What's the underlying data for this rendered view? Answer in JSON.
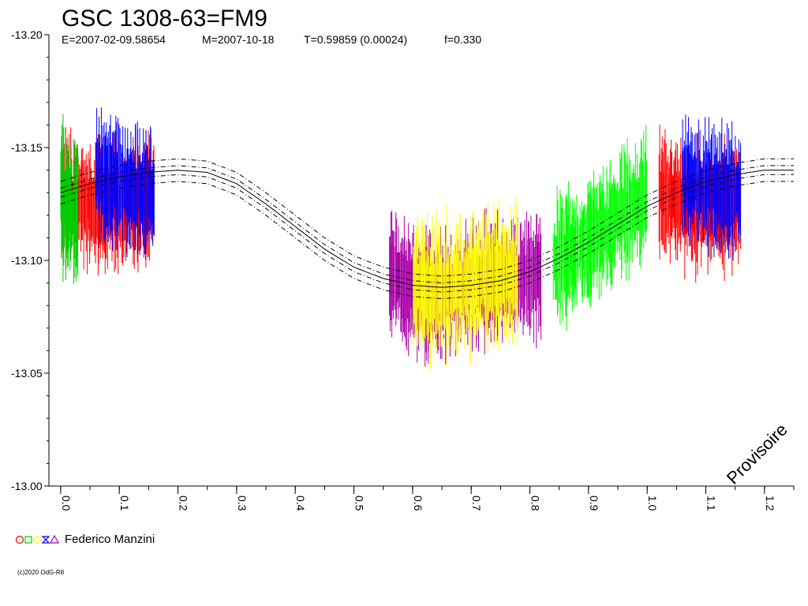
{
  "title": "GSC 1308-63=FM9",
  "subtitle": {
    "epoch": "E=2007-02-09.58654",
    "mid": "M=2007-10-18",
    "period": "T=0.59859 (0.00024)",
    "f": "f=0.330"
  },
  "watermark": "Provisoire",
  "legend": {
    "label": "Federico Manzini",
    "symbols": [
      {
        "name": "circle",
        "color": "#ff0000"
      },
      {
        "name": "square",
        "color": "#00cc00"
      },
      {
        "name": "diamond",
        "color": "#ffff00"
      },
      {
        "name": "hourglass",
        "color": "#0000ff"
      },
      {
        "name": "triangle",
        "color": "#aa00aa"
      }
    ]
  },
  "copyright": "(c)2020 OdG-R8",
  "chart_data": {
    "type": "scatter",
    "title": "GSC 1308-63=FM9",
    "xlabel": "",
    "ylabel": "",
    "xlim": [
      -0.02,
      1.25
    ],
    "ylim": [
      -13.2,
      -13.0
    ],
    "x_ticks": [
      "0.0",
      "0.1",
      "0.2",
      "0.3",
      "0.4",
      "0.5",
      "0.6",
      "0.7",
      "0.8",
      "0.9",
      "1.0",
      "1.1",
      "1.2"
    ],
    "y_ticks": [
      "-13.20",
      "-13.15",
      "-13.10",
      "-13.05",
      "-13.00"
    ],
    "y_inverted": true,
    "grid": false,
    "series": [
      {
        "color": "#ff0000",
        "x": [
          0.0,
          0.02,
          0.04,
          0.06,
          0.08,
          0.1,
          0.12,
          0.14,
          0.16
        ],
        "y": [
          -13.13,
          -13.128,
          -13.126,
          -13.124,
          -13.123,
          -13.124,
          -13.125,
          -13.127,
          -13.129
        ],
        "spread": 0.035
      },
      {
        "color": "#00cc00",
        "x": [
          0.0,
          0.01,
          0.02,
          0.03
        ],
        "y": [
          -13.13,
          -13.125,
          -13.12,
          -13.125
        ],
        "spread": 0.04
      },
      {
        "color": "#0000ff",
        "x": [
          0.06,
          0.08,
          0.1,
          0.12,
          0.14,
          0.16
        ],
        "y": [
          -13.138,
          -13.135,
          -13.133,
          -13.131,
          -13.13,
          -13.129
        ],
        "spread": 0.035
      },
      {
        "color": "#aa00aa",
        "x": [
          0.56,
          0.58,
          0.6,
          0.62,
          0.64,
          0.66,
          0.68,
          0.7,
          0.72,
          0.74,
          0.76,
          0.78,
          0.8,
          0.82
        ],
        "y": [
          -13.095,
          -13.09,
          -13.088,
          -13.085,
          -13.083,
          -13.085,
          -13.088,
          -13.09,
          -13.09,
          -13.09,
          -13.091,
          -13.092,
          -13.093,
          -13.094
        ],
        "spread": 0.035
      },
      {
        "color": "#ffff00",
        "x": [
          0.6,
          0.62,
          0.64,
          0.66,
          0.68,
          0.7,
          0.72,
          0.74,
          0.76,
          0.78
        ],
        "y": [
          -13.09,
          -13.088,
          -13.086,
          -13.087,
          -13.089,
          -13.09,
          -13.092,
          -13.093,
          -13.093,
          -13.092
        ],
        "spread": 0.04
      },
      {
        "color": "#00ff00",
        "x": [
          0.84,
          0.86,
          0.88,
          0.9,
          0.92,
          0.94,
          0.96,
          0.98,
          1.0
        ],
        "y": [
          -13.1,
          -13.102,
          -13.105,
          -13.108,
          -13.112,
          -13.117,
          -13.122,
          -13.125,
          -13.128
        ],
        "spread": 0.035
      },
      {
        "color": "#ff0000",
        "x": [
          1.02,
          1.04,
          1.06,
          1.08,
          1.1,
          1.12,
          1.14,
          1.16
        ],
        "y": [
          -13.13,
          -13.128,
          -13.126,
          -13.124,
          -13.123,
          -13.124,
          -13.125,
          -13.127
        ],
        "spread": 0.035
      },
      {
        "color": "#0000ff",
        "x": [
          1.06,
          1.08,
          1.1,
          1.12,
          1.14,
          1.16
        ],
        "y": [
          -13.138,
          -13.135,
          -13.133,
          -13.131,
          -13.13,
          -13.129
        ],
        "spread": 0.035
      }
    ],
    "model_curve": {
      "x": [
        0.0,
        0.05,
        0.1,
        0.15,
        0.2,
        0.25,
        0.3,
        0.35,
        0.4,
        0.45,
        0.5,
        0.55,
        0.6,
        0.65,
        0.7,
        0.75,
        0.8,
        0.85,
        0.9,
        0.95,
        1.0,
        1.05,
        1.1,
        1.15,
        1.2,
        1.25
      ],
      "y": [
        -13.13,
        -13.134,
        -13.137,
        -13.139,
        -13.14,
        -13.139,
        -13.134,
        -13.125,
        -13.115,
        -13.105,
        -13.097,
        -13.092,
        -13.089,
        -13.088,
        -13.089,
        -13.091,
        -13.095,
        -13.101,
        -13.108,
        -13.116,
        -13.124,
        -13.13,
        -13.135,
        -13.138,
        -13.14,
        -13.14
      ],
      "offsets": [
        -0.005,
        -0.002,
        0.0,
        0.002,
        0.005
      ]
    }
  }
}
